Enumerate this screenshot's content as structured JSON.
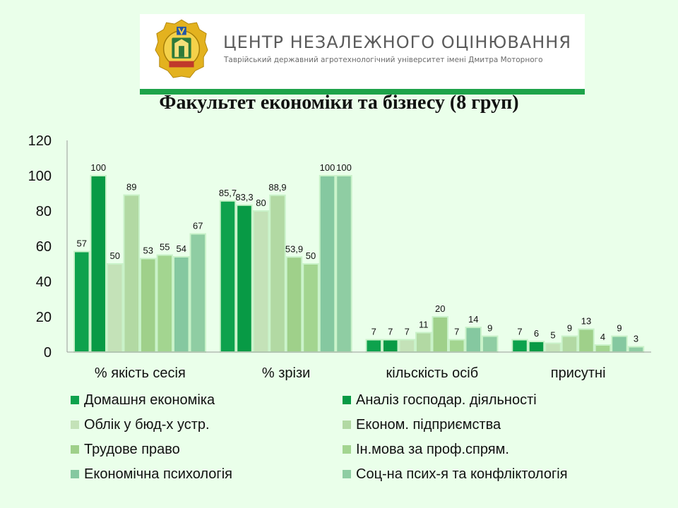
{
  "header": {
    "org_title": "ЦЕНТР НЕЗАЛЕЖНОГО ОЦІНЮВАННЯ",
    "org_subtitle": "Таврійський державний агротехнологічний університет імені Дмитра Моторного",
    "seal_icon": "university-seal-icon",
    "accent_color": "#1ea34a"
  },
  "chart_data": {
    "type": "bar",
    "title": "Факультет економіки та бізнесу (8 груп)",
    "categories": [
      "% якість сесія",
      "% зрізи",
      "кільскість осіб",
      "присутні"
    ],
    "ylim": [
      0,
      120
    ],
    "yticks": [
      "0",
      "20",
      "40",
      "60",
      "80",
      "100",
      "120"
    ],
    "grid": false,
    "legend_position": "bottom",
    "series": [
      {
        "name": "Домашня економіка",
        "color": "#0ea24d",
        "values": [
          57,
          85.7,
          7,
          7
        ],
        "labels": [
          "57",
          "85,7",
          "7",
          "7"
        ]
      },
      {
        "name": "Аналіз господар. діяльності",
        "color": "#089a45",
        "values": [
          100,
          83.3,
          7,
          6
        ],
        "labels": [
          "100",
          "83,3",
          "7",
          "6"
        ]
      },
      {
        "name": "Облік у бюд-х устр.",
        "color": "#c4e2b8",
        "values": [
          50,
          80,
          7,
          5
        ],
        "labels": [
          "50",
          "80",
          "7",
          "5"
        ]
      },
      {
        "name": "Економ. підприємства",
        "color": "#b2d9a3",
        "values": [
          89,
          88.9,
          11,
          9
        ],
        "labels": [
          "89",
          "88,9",
          "11",
          "9"
        ]
      },
      {
        "name": "Трудове право",
        "color": "#9fd08a",
        "values": [
          53,
          53.9,
          20,
          13
        ],
        "labels": [
          "53",
          "53,9",
          "20",
          "13"
        ]
      },
      {
        "name": "Ін.мова за проф.спрям.",
        "color": "#a3d590",
        "values": [
          55,
          50,
          7,
          4
        ],
        "labels": [
          "55",
          "50",
          "7",
          "4"
        ]
      },
      {
        "name": "Економічна психологія",
        "color": "#85c8a0",
        "values": [
          54,
          100,
          14,
          9
        ],
        "labels": [
          "54",
          "100",
          "14",
          "9"
        ]
      },
      {
        "name": "Соц-на псих-я та конфліктологія",
        "color": "#8fcda3",
        "values": [
          67,
          100,
          9,
          3
        ],
        "labels": [
          "67",
          "100",
          "9",
          "3"
        ]
      }
    ]
  }
}
